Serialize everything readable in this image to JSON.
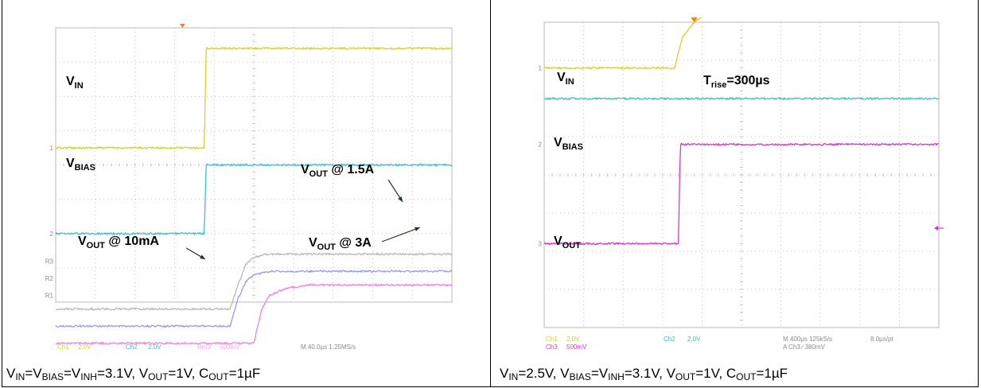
{
  "chart_data": [
    {
      "type": "line",
      "status_bar": {
        "ch1": "Ch1",
        "ch1_scale": "2.0V",
        "ch2": "Ch2",
        "ch2_scale": "2.0V",
        "ref": "Ref3",
        "ref_scale": "500mV",
        "timebase": "M 40.0µs 1.25MS/s"
      },
      "channel_markers": [
        "1",
        "2",
        "R1",
        "R2",
        "R3"
      ],
      "labels": [
        {
          "main": "V",
          "sub": "IN",
          "tail": ""
        },
        {
          "main": "V",
          "sub": "BIAS",
          "tail": ""
        },
        {
          "main": "V",
          "sub": "OUT",
          "tail": " @ 1.5A"
        },
        {
          "main": "V",
          "sub": "OUT",
          "tail": " @ 10mA"
        },
        {
          "main": "V",
          "sub": "OUT",
          "tail": " @ 3A"
        }
      ],
      "series": [
        {
          "name": "VIN",
          "color": "#d8d02a",
          "x": [
            0,
            3.75,
            3.8,
            10
          ],
          "y": [
            4.5,
            4.5,
            7.4,
            7.4
          ]
        },
        {
          "name": "VBIAS",
          "color": "#3cc0c8",
          "x": [
            0,
            3.75,
            3.8,
            10
          ],
          "y": [
            2.0,
            2.0,
            4.0,
            4.0
          ]
        },
        {
          "name": "VOUT @ 1.5A",
          "color": "#b8b8b8",
          "x": [
            0,
            4.4,
            4.6,
            4.8,
            5.0,
            5.3,
            10
          ],
          "y": [
            -0.2,
            -0.2,
            0.5,
            1.1,
            1.3,
            1.4,
            1.4
          ]
        },
        {
          "name": "VOUT @ 10mA",
          "color": "#9a9ae8",
          "x": [
            0,
            4.4,
            4.6,
            4.8,
            5.0,
            5.4,
            10
          ],
          "y": [
            -0.7,
            -0.7,
            0.1,
            0.6,
            0.8,
            0.9,
            0.9
          ]
        },
        {
          "name": "VOUT @ 3A",
          "color": "#f080e8",
          "x": [
            0,
            5.0,
            5.2,
            5.4,
            5.8,
            6.4,
            10
          ],
          "y": [
            -1.2,
            -1.2,
            -0.2,
            0.2,
            0.4,
            0.5,
            0.5
          ]
        }
      ]
    },
    {
      "type": "line",
      "status_bar": {
        "ch1": "Ch1",
        "ch1_scale": "2.0V",
        "ch3": "Ch3",
        "ch3_scale": "500mV",
        "ch2": "Ch2",
        "ch2_scale": "2.0V",
        "timebase": "M 400µs 125kS/s",
        "ptrate": "8.0µs/pt",
        "trigger": "A  Ch3  ∕  380mV"
      },
      "channel_markers": [
        "1",
        "2",
        "3"
      ],
      "labels": [
        {
          "main": "V",
          "sub": "IN",
          "tail": ""
        },
        {
          "main": "T",
          "sub": "rise",
          "tail": "=300µs"
        },
        {
          "main": "V",
          "sub": "BIAS",
          "tail": ""
        },
        {
          "main": "V",
          "sub": "OUT",
          "tail": ""
        }
      ],
      "series": [
        {
          "name": "VIN",
          "color": "#d8d02a",
          "x": [
            0,
            3.3,
            3.5,
            3.8,
            4.2,
            5.0,
            6.0,
            10
          ],
          "y": [
            6.8,
            6.8,
            7.6,
            8.0,
            8.3,
            8.5,
            8.6,
            8.6
          ]
        },
        {
          "name": "VBIAS",
          "color": "#3cc0c8",
          "x": [
            0,
            10
          ],
          "y": [
            6.0,
            6.0
          ]
        },
        {
          "name": "VOUT",
          "color": "#d838c8",
          "x": [
            0,
            3.4,
            3.45,
            10
          ],
          "y": [
            2.2,
            2.2,
            4.8,
            4.8
          ]
        }
      ]
    }
  ],
  "captions": {
    "left": {
      "a": "V",
      "a_sub": "IN",
      "b": "=V",
      "b_sub": "BIAS",
      "c": "=V",
      "c_sub": "INH",
      "d": "=3.1V, V",
      "d_sub": "OUT",
      "e": "=1V, C",
      "e_sub": "OUT",
      "f": "=1µF"
    },
    "right": {
      "a": "V",
      "a_sub": "IN",
      "b": "=2.5V, V",
      "b_sub": "BIAS",
      "c": "=V",
      "c_sub": "INH",
      "d": "=3.1V, V",
      "d_sub": "OUT",
      "e": "=1V, C",
      "e_sub": "OUT",
      "f": "=1µF"
    }
  },
  "colors": {
    "grid": "#b8b8b8",
    "trigger_marker": "#f08020",
    "status_bg": "#ffffff"
  }
}
